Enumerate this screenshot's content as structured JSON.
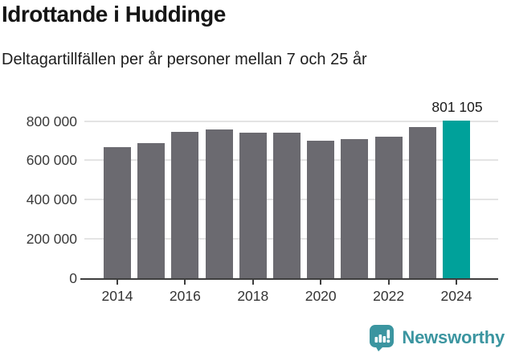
{
  "title": "Idrottande i Huddinge",
  "subtitle": "Deltagartillfällen per år personer mellan 7 och 25 år",
  "chart_data": {
    "type": "bar",
    "title": "Idrottande i Huddinge",
    "subtitle": "Deltagartillfällen per år personer mellan 7 och 25 år",
    "categories": [
      "2014",
      "2015",
      "2016",
      "2017",
      "2018",
      "2019",
      "2020",
      "2021",
      "2022",
      "2023",
      "2024"
    ],
    "values": [
      669000,
      688000,
      746000,
      755000,
      739000,
      742000,
      699000,
      707000,
      722000,
      770000,
      801105
    ],
    "highlight": {
      "category": "2024",
      "value": 801105,
      "label": "801 105",
      "color": "#00a19a"
    },
    "bar_color": "#6b6a70",
    "ylim": [
      0,
      800000
    ],
    "yticks": [
      0,
      200000,
      400000,
      600000,
      800000
    ],
    "ytick_labels": [
      "0",
      "200 000",
      "400 000",
      "600 000",
      "800 000"
    ],
    "xtick_labels": [
      "2014",
      "2016",
      "2018",
      "2020",
      "2022",
      "2024"
    ],
    "grid": true,
    "gridline_color": "#e4e4e4",
    "axis_color": "#3e3e3e",
    "legend": "none"
  },
  "footer": {
    "brand": "Newsworthy",
    "brand_color": "#3b95a0",
    "icon": "newsworthy-bar-chart-speech-bubble-icon"
  }
}
